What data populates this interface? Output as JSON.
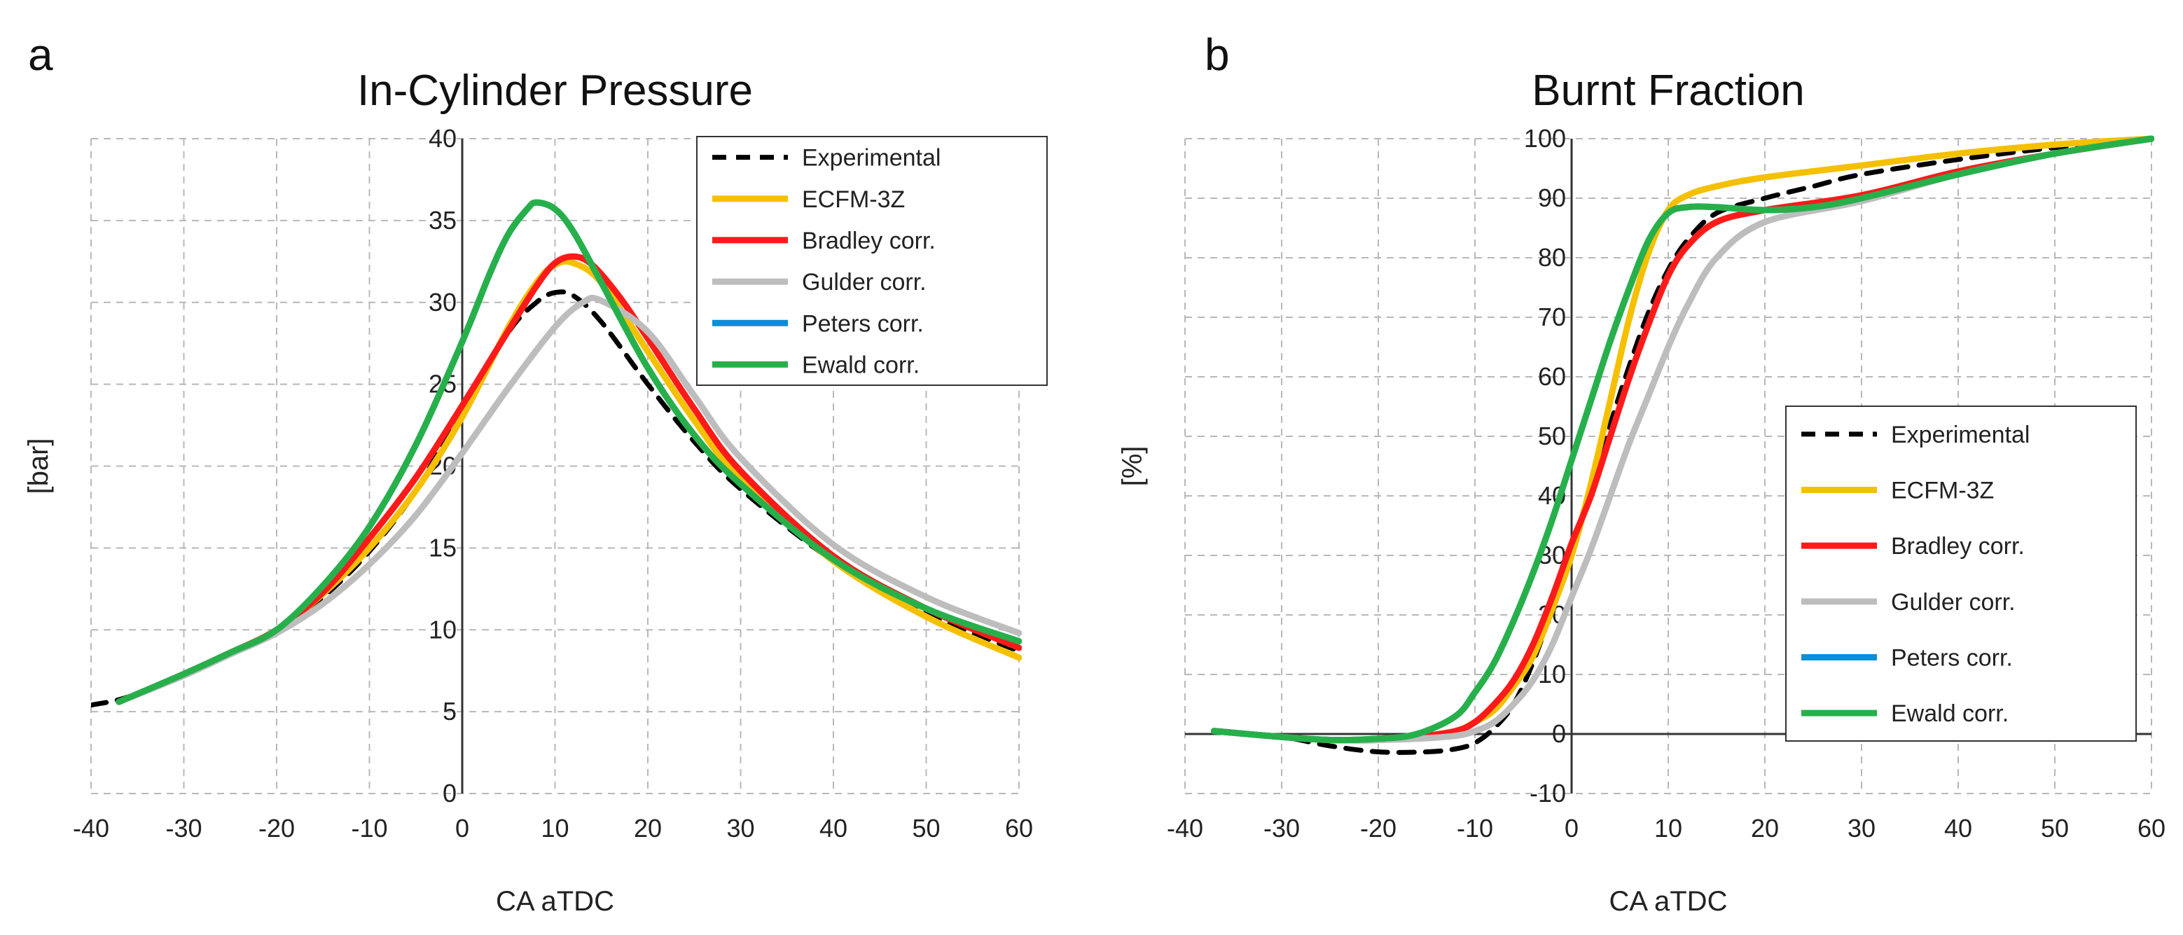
{
  "chart_data": [
    {
      "panel": "a",
      "type": "line",
      "title": "In-Cylinder Pressure",
      "xlabel": "CA aTDC",
      "ylabel": "[bar]",
      "xlim": [
        -40,
        60
      ],
      "ylim": [
        0,
        40
      ],
      "xticks": [
        -40,
        -30,
        -20,
        -10,
        0,
        10,
        20,
        30,
        40,
        50,
        60
      ],
      "yticks": [
        0,
        5,
        10,
        15,
        20,
        25,
        30,
        35,
        40
      ],
      "grid": true,
      "legend_position": "top-right",
      "series": [
        {
          "name": "Experimental",
          "color": "#000000",
          "dashed": true,
          "x": [
            -40,
            -36,
            -30,
            -25,
            -20,
            -15,
            -10,
            -5,
            0,
            5,
            8,
            10,
            12,
            15,
            20,
            25,
            30,
            40,
            50,
            60
          ],
          "y": [
            5.4,
            5.9,
            7.3,
            8.6,
            10.0,
            12.0,
            14.8,
            18.5,
            23.5,
            28.2,
            30.0,
            30.6,
            30.4,
            28.8,
            25.0,
            21.5,
            18.6,
            14.2,
            11.0,
            8.7
          ]
        },
        {
          "name": "ECFM-3Z",
          "color": "#f5c000",
          "dashed": false,
          "x": [
            -37,
            -30,
            -25,
            -20,
            -15,
            -10,
            -5,
            0,
            5,
            8,
            10,
            12,
            15,
            20,
            25,
            30,
            40,
            50,
            60
          ],
          "y": [
            5.6,
            7.3,
            8.6,
            10.0,
            12.2,
            15.0,
            18.5,
            23.0,
            28.5,
            31.2,
            32.3,
            32.4,
            31.2,
            27.0,
            22.8,
            19.2,
            14.2,
            10.8,
            8.3
          ]
        },
        {
          "name": "Bradley corr.",
          "color": "#ff1a1a",
          "dashed": false,
          "x": [
            -37,
            -30,
            -25,
            -20,
            -15,
            -10,
            -5,
            0,
            5,
            8,
            10,
            12,
            14,
            17,
            20,
            25,
            30,
            40,
            50,
            60
          ],
          "y": [
            5.6,
            7.3,
            8.6,
            10.0,
            12.3,
            15.6,
            19.3,
            23.7,
            28.3,
            31.0,
            32.4,
            32.8,
            32.3,
            30.3,
            27.8,
            23.5,
            19.7,
            14.5,
            11.3,
            8.9
          ]
        },
        {
          "name": "Gulder corr.",
          "color": "#bdbdbd",
          "dashed": false,
          "x": [
            -37,
            -30,
            -25,
            -20,
            -15,
            -10,
            -5,
            0,
            5,
            10,
            13,
            15,
            20,
            25,
            30,
            40,
            50,
            60
          ],
          "y": [
            5.6,
            7.2,
            8.5,
            9.8,
            11.6,
            14.0,
            17.0,
            20.8,
            24.8,
            28.5,
            30.0,
            30.1,
            28.2,
            24.3,
            20.5,
            15.2,
            12.0,
            9.8
          ]
        },
        {
          "name": "Peters corr.",
          "color": "#0a8fd6",
          "dashed": false,
          "x": [
            -37,
            -30,
            -25,
            -20,
            -15,
            -10,
            -5,
            0,
            3,
            5,
            7,
            8,
            10,
            12,
            15,
            20,
            25,
            30,
            40,
            50,
            60
          ],
          "y": [
            5.6,
            7.3,
            8.6,
            10.0,
            12.7,
            16.3,
            21.3,
            27.6,
            31.8,
            34.2,
            35.7,
            36.1,
            35.7,
            34.3,
            31.2,
            26.0,
            21.9,
            18.9,
            14.3,
            11.3,
            9.3
          ]
        },
        {
          "name": "Ewald corr.",
          "color": "#27b04a",
          "dashed": false,
          "x": [
            -37,
            -30,
            -25,
            -20,
            -15,
            -10,
            -5,
            0,
            3,
            5,
            7,
            8,
            10,
            12,
            15,
            20,
            25,
            30,
            40,
            50,
            60
          ],
          "y": [
            5.6,
            7.3,
            8.6,
            10.0,
            12.7,
            16.3,
            21.3,
            27.6,
            31.8,
            34.2,
            35.7,
            36.1,
            35.7,
            34.3,
            31.2,
            26.0,
            21.9,
            18.9,
            14.3,
            11.3,
            9.3
          ]
        }
      ]
    },
    {
      "panel": "b",
      "type": "line",
      "title": "Burnt Fraction",
      "xlabel": "CA aTDC",
      "ylabel": "[%]",
      "xlim": [
        -40,
        60
      ],
      "ylim": [
        -10,
        100
      ],
      "xticks": [
        -40,
        -30,
        -20,
        -10,
        0,
        10,
        20,
        30,
        40,
        50,
        60
      ],
      "yticks": [
        -10,
        0,
        10,
        20,
        30,
        40,
        50,
        60,
        70,
        80,
        90,
        100
      ],
      "grid": true,
      "legend_position": "bottom-right",
      "series": [
        {
          "name": "Experimental",
          "color": "#000000",
          "dashed": true,
          "x": [
            -37,
            -30,
            -25,
            -20,
            -15,
            -12,
            -10,
            -8,
            -6,
            -4,
            -2,
            0,
            2,
            4,
            6,
            8,
            10,
            12,
            15,
            20,
            25,
            30,
            40,
            50,
            60
          ],
          "y": [
            0.5,
            -0.5,
            -2.0,
            -3.0,
            -3.0,
            -2.5,
            -1.5,
            1.0,
            5.0,
            12.0,
            21.0,
            30.0,
            41.0,
            52.0,
            62.0,
            71.0,
            78.0,
            83.0,
            87.5,
            90.0,
            92.0,
            94.0,
            96.5,
            98.5,
            100
          ]
        },
        {
          "name": "ECFM-3Z",
          "color": "#f5c000",
          "dashed": false,
          "x": [
            -37,
            -30,
            -25,
            -20,
            -16,
            -12,
            -10,
            -8,
            -6,
            -4,
            -2,
            0,
            2,
            4,
            6,
            8,
            10,
            12,
            15,
            20,
            30,
            40,
            50,
            60
          ],
          "y": [
            0.5,
            -0.5,
            -1.0,
            -1.0,
            -0.5,
            0.5,
            2.0,
            4.0,
            8.0,
            13.0,
            21.0,
            30.0,
            42.0,
            56.0,
            70.0,
            81.0,
            88.0,
            90.5,
            92.0,
            93.5,
            95.5,
            97.5,
            99.0,
            100
          ]
        },
        {
          "name": "Bradley corr.",
          "color": "#ff1a1a",
          "dashed": false,
          "x": [
            -37,
            -30,
            -25,
            -20,
            -16,
            -12,
            -10,
            -8,
            -6,
            -4,
            -2,
            0,
            2,
            4,
            6,
            8,
            10,
            12,
            15,
            20,
            30,
            40,
            50,
            60
          ],
          "y": [
            0.5,
            -0.5,
            -1.0,
            -1.0,
            -0.5,
            0.5,
            2.0,
            5.0,
            9.0,
            15.0,
            23.0,
            32.0,
            40.0,
            50.0,
            60.0,
            69.0,
            77.0,
            82.0,
            86.0,
            88.0,
            90.5,
            94.5,
            97.5,
            100
          ]
        },
        {
          "name": "Gulder corr.",
          "color": "#bdbdbd",
          "dashed": false,
          "x": [
            -37,
            -30,
            -25,
            -20,
            -16,
            -12,
            -10,
            -8,
            -6,
            -4,
            -2,
            0,
            2,
            4,
            6,
            8,
            10,
            12,
            15,
            20,
            30,
            40,
            50,
            60
          ],
          "y": [
            0.5,
            -0.5,
            -1.0,
            -1.0,
            -0.8,
            -0.3,
            0.5,
            2.0,
            5.0,
            9.0,
            15.0,
            23.0,
            31.0,
            40.0,
            49.0,
            57.0,
            65.0,
            72.0,
            80.0,
            86.0,
            89.5,
            94.0,
            97.5,
            100
          ]
        },
        {
          "name": "Peters corr.",
          "color": "#0a8fd6",
          "dashed": false,
          "x": [
            -37,
            -30,
            -25,
            -20,
            -16,
            -12,
            -10,
            -8,
            -6,
            -4,
            -2,
            0,
            2,
            4,
            6,
            8,
            10,
            12,
            15,
            20,
            25,
            30,
            40,
            50,
            60
          ],
          "y": [
            0.5,
            -0.5,
            -1.0,
            -0.8,
            0.0,
            3.0,
            7.0,
            12.0,
            19.0,
            27.0,
            36.0,
            46.0,
            56.0,
            66.0,
            75.0,
            83.0,
            87.5,
            88.5,
            88.5,
            88.0,
            88.5,
            90.0,
            94.0,
            97.5,
            100
          ]
        },
        {
          "name": "Ewald corr.",
          "color": "#27b04a",
          "dashed": false,
          "x": [
            -37,
            -30,
            -25,
            -20,
            -16,
            -12,
            -10,
            -8,
            -6,
            -4,
            -2,
            0,
            2,
            4,
            6,
            8,
            10,
            12,
            15,
            20,
            25,
            30,
            40,
            50,
            60
          ],
          "y": [
            0.5,
            -0.5,
            -1.0,
            -0.8,
            0.0,
            3.0,
            7.0,
            12.0,
            19.0,
            27.0,
            36.0,
            46.0,
            56.0,
            66.0,
            75.0,
            83.0,
            87.5,
            88.5,
            88.5,
            88.0,
            88.5,
            90.0,
            94.0,
            97.5,
            100
          ]
        }
      ]
    }
  ]
}
